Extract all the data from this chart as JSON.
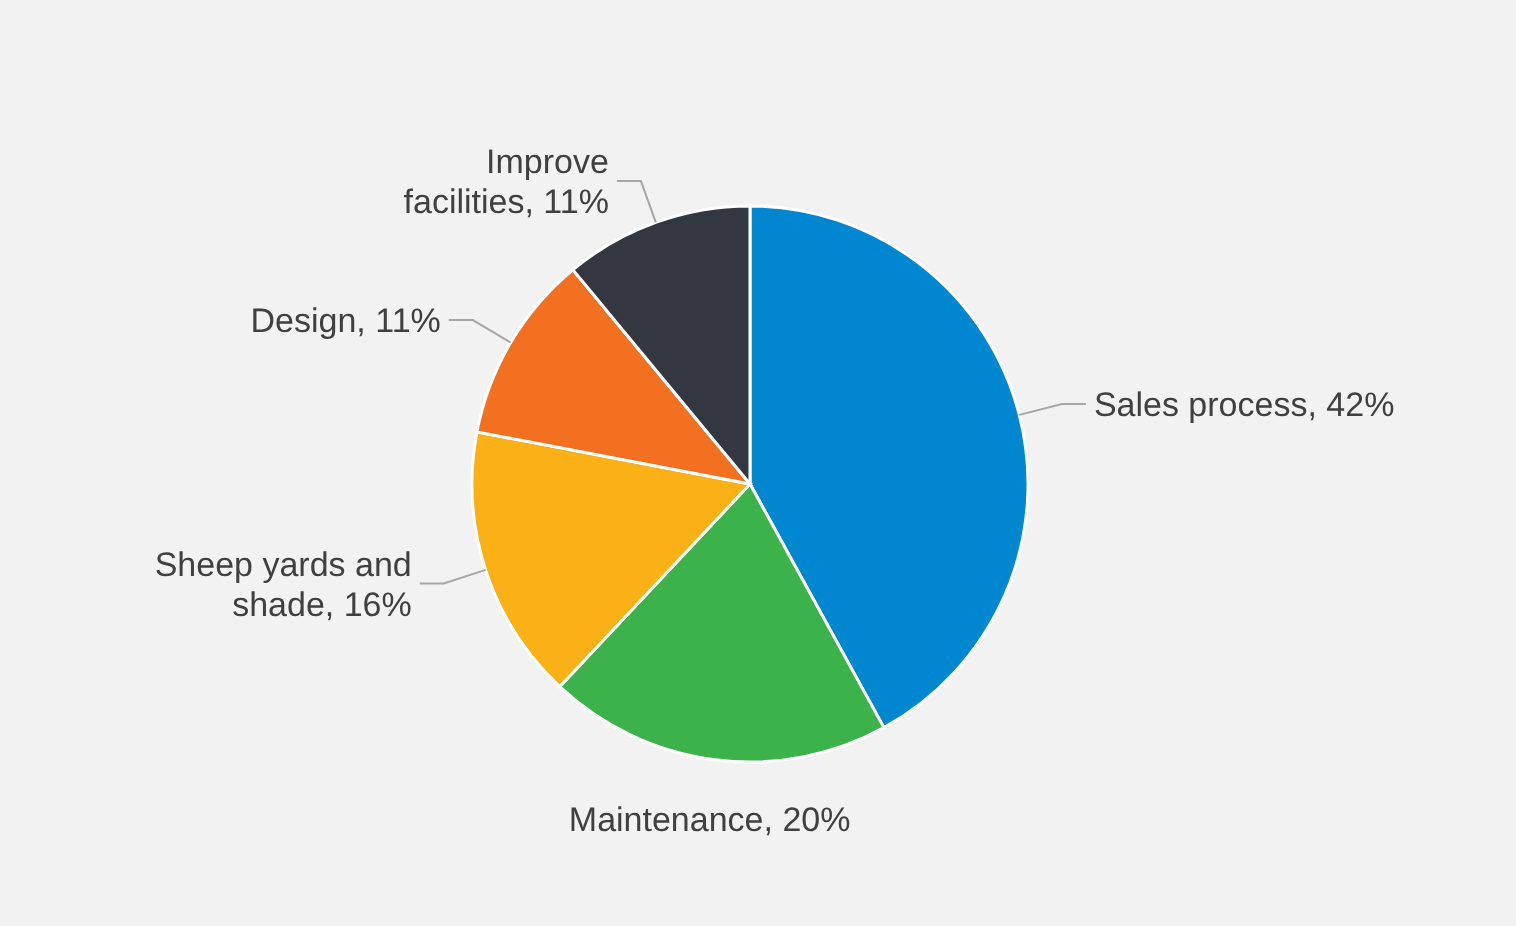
{
  "chart_data": {
    "type": "pie",
    "categories": [
      "Sales process",
      "Maintenance",
      "Sheep yards and shade",
      "Design",
      "Improve facilities"
    ],
    "values": [
      42,
      20,
      16,
      11,
      11
    ],
    "colors": [
      "#0087d0",
      "#3cb24a",
      "#fbb116",
      "#f37021",
      "#333740"
    ],
    "value_labels": [
      "42%",
      "20%",
      "16%",
      "11%",
      "11%"
    ],
    "legend": false
  }
}
